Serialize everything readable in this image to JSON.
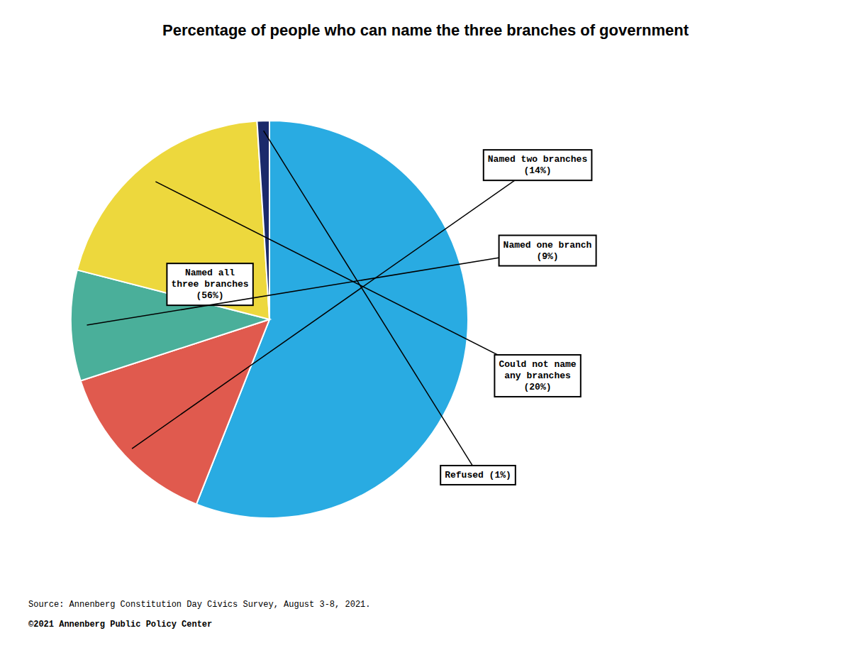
{
  "chart_data": {
    "type": "pie",
    "title": "Percentage of people who can name the three branches of government",
    "categories": [
      "Named all\nthree branches\n(56%)",
      "Named two branches\n(14%)",
      "Named one branch\n(9%)",
      "Could not name\nany branches\n(20%)",
      "Refused (1%)"
    ],
    "values": [
      56,
      14,
      9,
      20,
      1
    ],
    "colors": [
      "#29ABE2",
      "#E05A4E",
      "#4AAF9A",
      "#EDD83D",
      "#1B2A6B"
    ],
    "annotations": [
      "Source: Annenberg Constitution Day Civics Survey, August 3-8, 2021.",
      "©2021 Annenberg Public Policy Center"
    ]
  }
}
